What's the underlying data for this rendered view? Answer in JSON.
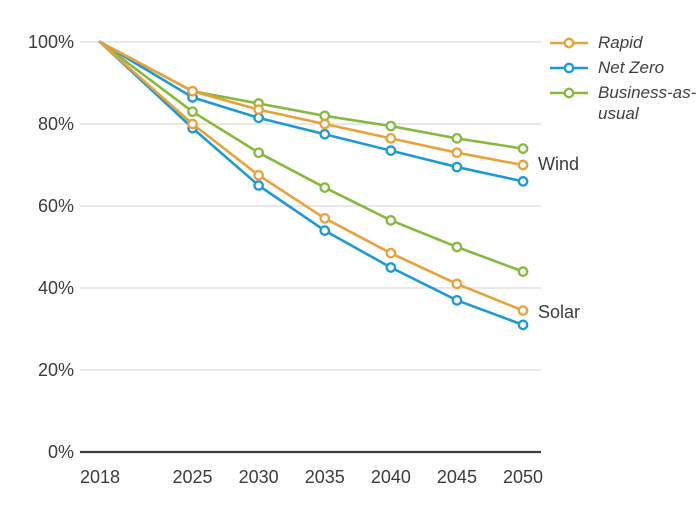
{
  "chart_data": {
    "type": "line",
    "title": "",
    "xlabel": "",
    "ylabel": "",
    "x": [
      2018,
      2025,
      2030,
      2035,
      2040,
      2045,
      2050
    ],
    "x_tick_labels": [
      "2018",
      "2025",
      "2030",
      "2035",
      "2040",
      "2045",
      "2050"
    ],
    "ylim": [
      0,
      100
    ],
    "yticks": [
      0,
      20,
      40,
      60,
      80,
      100
    ],
    "ytick_labels": [
      "0%",
      "20%",
      "40%",
      "60%",
      "80%",
      "100%"
    ],
    "grid": "horizontal",
    "legend_position": "top-right",
    "legend": [
      {
        "label": "Rapid",
        "color": "#E9A23B"
      },
      {
        "label": "Net Zero",
        "color": "#1C9AD6"
      },
      {
        "label": "Business-as-usual",
        "color": "#86B93D"
      }
    ],
    "series": [
      {
        "name": "Wind Business-as-usual",
        "group": "Wind",
        "scenario": "Business-as-usual",
        "color": "#86B93D",
        "values": [
          100,
          88,
          85,
          82,
          79.5,
          76.5,
          74
        ]
      },
      {
        "name": "Wind Net Zero",
        "group": "Wind",
        "scenario": "Net Zero",
        "color": "#1C9AD6",
        "values": [
          100,
          86.5,
          81.5,
          77.5,
          73.5,
          69.5,
          66
        ]
      },
      {
        "name": "Wind Rapid",
        "group": "Wind",
        "scenario": "Rapid",
        "color": "#E9A23B",
        "values": [
          100,
          88,
          83.5,
          80,
          76.5,
          73,
          70
        ]
      },
      {
        "name": "Solar Business-as-usual",
        "group": "Solar",
        "scenario": "Business-as-usual",
        "color": "#86B93D",
        "values": [
          100,
          83,
          73,
          64.5,
          56.5,
          50,
          44
        ]
      },
      {
        "name": "Solar Net Zero",
        "group": "Solar",
        "scenario": "Net Zero",
        "color": "#1C9AD6",
        "values": [
          100,
          79,
          65,
          54,
          45,
          37,
          31
        ]
      },
      {
        "name": "Solar Rapid",
        "group": "Solar",
        "scenario": "Rapid",
        "color": "#E9A23B",
        "values": [
          100,
          80,
          67.5,
          57,
          48.5,
          41,
          34.5
        ]
      }
    ],
    "annotations": [
      {
        "text": "Wind",
        "x": 2050,
        "y": 70
      },
      {
        "text": "Solar",
        "x": 2050,
        "y": 34
      }
    ]
  },
  "colors": {
    "rapid": "#E9A23B",
    "net_zero": "#1C9AD6",
    "business_as_usual": "#86B93D",
    "grid": "#D9D9D9",
    "axis": "#3F3F3F",
    "text": "#3C3C3C",
    "background": "#FFFFFF",
    "marker_fill": "#FFFFFF"
  }
}
